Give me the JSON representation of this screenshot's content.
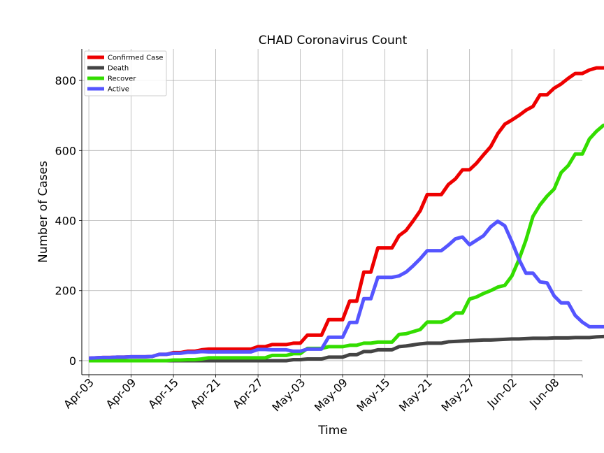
{
  "chart_data": {
    "type": "line",
    "title": "CHAD Coronavirus Count",
    "xlabel": "Time",
    "ylabel": "Number of Cases",
    "x_tick_labels": [
      "Apr-03",
      "Apr-09",
      "Apr-15",
      "Apr-21",
      "Apr-27",
      "May-03",
      "May-09",
      "May-15",
      "May-21",
      "May-27",
      "Jun-02",
      "Jun-08"
    ],
    "x_start": "2020-04-03",
    "x_end": "2020-06-11",
    "xlim": [
      "2020-04-02",
      "2020-06-12"
    ],
    "ylim": [
      -40,
      890
    ],
    "y_ticks": [
      0,
      200,
      400,
      600,
      800
    ],
    "grid": true,
    "legend_position": "top-left",
    "series": [
      {
        "name": "Confirmed Case",
        "color": "#ee0000",
        "values": [
          7,
          8,
          9,
          9,
          10,
          10,
          11,
          11,
          11,
          12,
          18,
          18,
          23,
          23,
          27,
          27,
          31,
          33,
          33,
          33,
          33,
          33,
          33,
          33,
          40,
          40,
          46,
          46,
          46,
          50,
          50,
          73,
          73,
          73,
          117,
          117,
          117,
          170,
          170,
          253,
          253,
          322,
          322,
          322,
          357,
          372,
          399,
          428,
          474,
          474,
          474,
          503,
          519,
          545,
          545,
          564,
          588,
          611,
          648,
          675,
          687,
          700,
          715,
          726,
          759,
          759,
          778,
          790,
          806,
          820,
          820,
          830,
          836,
          836,
          837,
          838,
          843,
          846
        ]
      },
      {
        "name": "Death",
        "color": "#444444",
        "values": [
          0,
          0,
          0,
          0,
          0,
          0,
          0,
          0,
          0,
          0,
          0,
          0,
          0,
          0,
          0,
          0,
          0,
          0,
          0,
          0,
          0,
          0,
          0,
          0,
          0,
          0,
          0,
          0,
          0,
          3,
          3,
          5,
          5,
          5,
          10,
          10,
          10,
          17,
          17,
          26,
          26,
          31,
          31,
          31,
          40,
          42,
          45,
          48,
          50,
          50,
          50,
          54,
          55,
          56,
          57,
          58,
          59,
          59,
          60,
          61,
          62,
          62,
          63,
          64,
          64,
          64,
          65,
          65,
          65,
          66,
          66,
          66,
          68,
          69,
          69,
          70,
          71,
          72
        ]
      },
      {
        "name": "Recover",
        "color": "#33dd00",
        "values": [
          0,
          0,
          0,
          0,
          0,
          0,
          0,
          0,
          0,
          0,
          0,
          0,
          2,
          2,
          3,
          3,
          5,
          8,
          8,
          8,
          8,
          8,
          8,
          8,
          8,
          8,
          15,
          15,
          15,
          20,
          20,
          35,
          35,
          35,
          40,
          40,
          40,
          44,
          44,
          50,
          50,
          53,
          53,
          53,
          75,
          77,
          83,
          89,
          110,
          110,
          110,
          119,
          136,
          136,
          176,
          182,
          192,
          200,
          210,
          215,
          242,
          288,
          344,
          412,
          445,
          470,
          490,
          537,
          557,
          590,
          590,
          633,
          655,
          672,
          672,
          672,
          703,
          705
        ]
      },
      {
        "name": "Active",
        "color": "#5555ff",
        "values": [
          7,
          8,
          9,
          9,
          10,
          10,
          11,
          11,
          11,
          12,
          18,
          18,
          21,
          21,
          24,
          24,
          26,
          25,
          25,
          25,
          25,
          25,
          25,
          25,
          32,
          32,
          31,
          31,
          31,
          27,
          27,
          33,
          33,
          33,
          67,
          67,
          67,
          109,
          109,
          177,
          177,
          238,
          238,
          238,
          242,
          253,
          271,
          291,
          314,
          314,
          314,
          330,
          348,
          353,
          331,
          344,
          357,
          382,
          398,
          385,
          340,
          290,
          250,
          250,
          225,
          222,
          185,
          165,
          165,
          129,
          110,
          97,
          97,
          97,
          97,
          73,
          69,
          69
        ]
      }
    ]
  }
}
